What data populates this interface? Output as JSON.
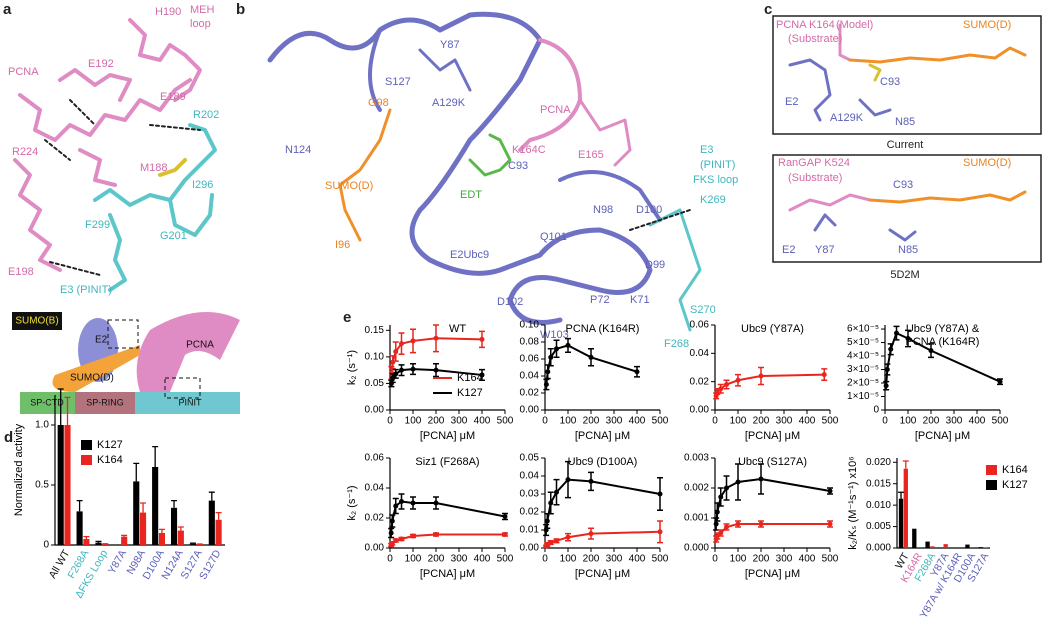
{
  "panels": {
    "a": {
      "letter": "a",
      "labels": [
        "H190",
        "MEH",
        "loop",
        "PCNA",
        "E192",
        "E189",
        "R202",
        "R224",
        "M188",
        "I296",
        "F299",
        "G201",
        "E198",
        "E3 (PINIT)"
      ],
      "schematic": [
        "SUMO(B)",
        "E2",
        "SUMO(D)",
        "PCNA",
        "SP-CTD",
        "SP-RING",
        "PINIT"
      ]
    },
    "b": {
      "letter": "b",
      "labels": [
        "Y87",
        "S127",
        "G98",
        "A129K",
        "PCNA",
        "E165",
        "N124",
        "SUMO(D)",
        "K164C",
        "C93",
        "E3",
        "(PINIT)",
        "FKS loop",
        "K269",
        "EDT",
        "I96",
        "N98",
        "D100",
        "Q101",
        "E2Ubc9",
        "D99",
        "P72",
        "K71",
        "S270",
        "D102",
        "W103",
        "F268"
      ]
    },
    "c": {
      "letter": "c",
      "boxes": [
        {
          "labels": [
            "PCNA K164",
            "(Model)",
            "(Substrate)",
            "SUMO(D)",
            "C93",
            "E2",
            "A129K",
            "N85"
          ],
          "caption": "Current"
        },
        {
          "labels": [
            "RanGAP K524",
            "(Substrate)",
            "SUMO(D)",
            "C93",
            "E2",
            "Y87",
            "N85"
          ],
          "caption": "5D2M"
        }
      ]
    }
  },
  "chart_data": [
    {
      "type": "bar",
      "panel_letter": "d",
      "ylabel": "Normalized activity",
      "categories": [
        "All WT",
        "F268A",
        "ΔFKS Loop",
        "Y87A",
        "N98A",
        "D100A",
        "N124A",
        "S127A",
        "S127D"
      ],
      "category_colors": [
        "#111111",
        "#3fb7bd",
        "#3fb7bd",
        "#5c5fb8",
        "#5c5fb8",
        "#5c5fb8",
        "#5c5fb8",
        "#5c5fb8",
        "#5c5fb8"
      ],
      "ylim": [
        0,
        1.25
      ],
      "yticks": [
        0,
        0.5,
        {
          "value": 1,
          "label": "1.0"
        }
      ],
      "legend": "upper right",
      "series": [
        {
          "name": "K127",
          "color": "#000000",
          "values": [
            1.0,
            0.28,
            0.02,
            null,
            0.53,
            0.65,
            0.31,
            0.01,
            0.37
          ],
          "errors": [
            0.3,
            0.09,
            0.01,
            null,
            0.15,
            0.17,
            0.06,
            0.005,
            0.07
          ]
        },
        {
          "name": "K164",
          "color": "#e8261f",
          "values": [
            1.0,
            0.05,
            0.005,
            0.07,
            0.27,
            0.1,
            0.12,
            0.005,
            0.21
          ],
          "errors": [
            0.23,
            0.02,
            0.005,
            0.01,
            0.08,
            0.03,
            0.03,
            0.003,
            0.06
          ]
        }
      ]
    },
    {
      "type": "line",
      "panel_letter": "e",
      "title": "WT",
      "ylabel": "k₂ (s⁻¹)",
      "xlabel": "[PCNA] μM",
      "x": [
        6,
        12,
        25,
        50,
        100,
        200,
        400
      ],
      "xlim": [
        0,
        500
      ],
      "xticks": [
        0,
        100,
        200,
        300,
        400,
        500
      ],
      "ylim": [
        0,
        0.16
      ],
      "yticks": [
        {
          "value": 0,
          "label": "0.00"
        },
        {
          "value": 0.05,
          "label": "0.05"
        },
        {
          "value": 0.1,
          "label": "0.10"
        },
        {
          "value": 0.15,
          "label": "0.15"
        }
      ],
      "legend": "center right",
      "series": [
        {
          "name": "K164",
          "color": "#e8261f",
          "values": [
            0.07,
            0.09,
            0.11,
            0.125,
            0.13,
            0.135,
            0.133
          ],
          "errors": [
            0.012,
            0.012,
            0.018,
            0.02,
            0.022,
            0.025,
            0.015
          ]
        },
        {
          "name": "K127",
          "color": "#000000",
          "values": [
            0.05,
            0.06,
            0.068,
            0.075,
            0.077,
            0.075,
            0.066
          ],
          "errors": [
            0.006,
            0.008,
            0.008,
            0.01,
            0.01,
            0.012,
            0.01
          ]
        }
      ]
    },
    {
      "type": "line",
      "title": "PCNA (K164R)",
      "xlabel": "[PCNA] μM",
      "x": [
        6,
        12,
        25,
        50,
        100,
        200,
        400
      ],
      "xlim": [
        0,
        500
      ],
      "xticks": [
        0,
        100,
        200,
        300,
        400,
        500
      ],
      "ylim": [
        0,
        0.1
      ],
      "yticks": [
        {
          "value": 0,
          "label": "0.00"
        },
        {
          "value": 0.02,
          "label": "0.02"
        },
        {
          "value": 0.04,
          "label": "0.04"
        },
        {
          "value": 0.06,
          "label": "0.06"
        },
        {
          "value": 0.08,
          "label": "0.08"
        },
        {
          "value": 0.1,
          "label": "0.10"
        }
      ],
      "series": [
        {
          "color": "#000000",
          "values": [
            0.03,
            0.045,
            0.062,
            0.072,
            0.076,
            0.062,
            0.045
          ],
          "errors": [
            0.006,
            0.008,
            0.01,
            0.01,
            0.008,
            0.01,
            0.006
          ]
        }
      ]
    },
    {
      "type": "line",
      "title": "Ubc9 (Y87A)",
      "xlabel": "[PCNA] μM",
      "x": [
        5,
        10,
        25,
        50,
        100,
        200,
        475
      ],
      "xlim": [
        0,
        500
      ],
      "xticks": [
        0,
        100,
        200,
        300,
        400,
        500
      ],
      "ylim": [
        0,
        0.06
      ],
      "yticks": [
        {
          "value": 0,
          "label": "0.00"
        },
        {
          "value": 0.02,
          "label": "0.02"
        },
        {
          "value": 0.04,
          "label": "0.04"
        },
        {
          "value": 0.06,
          "label": "0.06"
        }
      ],
      "series": [
        {
          "color": "#e8261f",
          "values": [
            0.01,
            0.013,
            0.015,
            0.018,
            0.021,
            0.024,
            0.025
          ],
          "errors": [
            0.002,
            0.002,
            0.003,
            0.003,
            0.004,
            0.006,
            0.004
          ]
        }
      ]
    },
    {
      "type": "line",
      "title": [
        "Ubc9 (Y87A) &",
        "PCNA (K164R)"
      ],
      "xlabel": "[PCNA] μM",
      "x": [
        5,
        10,
        25,
        50,
        100,
        200,
        500
      ],
      "xlim": [
        0,
        500
      ],
      "xticks": [
        0,
        100,
        200,
        300,
        400,
        500
      ],
      "ylim": [
        0,
        6.3e-05
      ],
      "yticks": [
        0,
        {
          "value": 1e-05,
          "label": "1×10⁻⁵"
        },
        {
          "value": 2e-05,
          "label": "2×10⁻⁵"
        },
        {
          "value": 3e-05,
          "label": "3×10⁻⁵"
        },
        {
          "value": 4e-05,
          "label": "4×10⁻⁵"
        },
        {
          "value": 5e-05,
          "label": "5×10⁻⁵"
        },
        {
          "value": 6e-05,
          "label": "6×10⁻⁵"
        }
      ],
      "series": [
        {
          "color": "#000000",
          "values": [
            1.8e-05,
            3e-05,
            4.5e-05,
            5.7e-05,
            5.3e-05,
            4.4e-05,
            2.1e-05
          ],
          "errors": [
            3e-06,
            4e-06,
            4e-06,
            5e-06,
            6e-06,
            5e-06,
            2e-06
          ]
        }
      ]
    },
    {
      "type": "line",
      "title": "Siz1 (F268A)",
      "ylabel": "k₂ (s⁻¹)",
      "xlabel": "[PCNA] μM",
      "x": [
        5,
        10,
        25,
        50,
        100,
        200,
        500
      ],
      "xlim": [
        0,
        500
      ],
      "xticks": [
        0,
        100,
        200,
        300,
        400,
        500
      ],
      "ylim": [
        0,
        0.06
      ],
      "yticks": [
        {
          "value": 0,
          "label": "0.00"
        },
        {
          "value": 0.02,
          "label": "0.02"
        },
        {
          "value": 0.04,
          "label": "0.04"
        },
        {
          "value": 0.06,
          "label": "0.06"
        }
      ],
      "series": [
        {
          "color": "#000000",
          "values": [
            0.01,
            0.018,
            0.028,
            0.031,
            0.03,
            0.03,
            0.021
          ],
          "errors": [
            0.003,
            0.004,
            0.005,
            0.005,
            0.004,
            0.004,
            0.002
          ]
        },
        {
          "color": "#e8261f",
          "values": [
            0.002,
            0.003,
            0.005,
            0.006,
            0.008,
            0.009,
            0.009
          ],
          "errors": [
            0.001,
            0.001,
            0.001,
            0.001,
            0.001,
            0.001,
            0.001
          ]
        }
      ]
    },
    {
      "type": "line",
      "title": "Ubc9 (D100A)",
      "xlabel": "[PCNA] μM",
      "x": [
        5,
        10,
        25,
        50,
        100,
        200,
        500
      ],
      "xlim": [
        0,
        500
      ],
      "xticks": [
        0,
        100,
        200,
        300,
        400,
        500
      ],
      "ylim": [
        0,
        0.05
      ],
      "yticks": [
        {
          "value": 0,
          "label": "0.00"
        },
        {
          "value": 0.01,
          "label": "0.01"
        },
        {
          "value": 0.02,
          "label": "0.02"
        },
        {
          "value": 0.03,
          "label": "0.03"
        },
        {
          "value": 0.04,
          "label": "0.04"
        },
        {
          "value": 0.05,
          "label": "0.05"
        }
      ],
      "series": [
        {
          "color": "#000000",
          "values": [
            0.01,
            0.015,
            0.025,
            0.031,
            0.038,
            0.037,
            0.03
          ],
          "errors": [
            0.003,
            0.004,
            0.006,
            0.007,
            0.01,
            0.005,
            0.009
          ]
        },
        {
          "color": "#e8261f",
          "values": [
            0.001,
            0.002,
            0.003,
            0.004,
            0.006,
            0.008,
            0.009
          ],
          "errors": [
            0.0005,
            0.001,
            0.001,
            0.001,
            0.002,
            0.003,
            0.006
          ]
        }
      ]
    },
    {
      "type": "line",
      "title": "Ubc9 (S127A)",
      "xlabel": "[PCNA] μM",
      "x": [
        5,
        10,
        25,
        50,
        100,
        200,
        500
      ],
      "xlim": [
        0,
        500
      ],
      "xticks": [
        0,
        100,
        200,
        300,
        400,
        500
      ],
      "ylim": [
        0,
        0.003
      ],
      "yticks": [
        {
          "value": 0,
          "label": "0.000"
        },
        {
          "value": 0.001,
          "label": "0.001"
        },
        {
          "value": 0.002,
          "label": "0.002"
        },
        {
          "value": 0.003,
          "label": "0.003"
        }
      ],
      "series": [
        {
          "color": "#000000",
          "values": [
            0.0008,
            0.0012,
            0.0017,
            0.002,
            0.0022,
            0.0023,
            0.0019
          ],
          "errors": [
            0.0002,
            0.0003,
            0.0003,
            0.0004,
            0.0006,
            0.0005,
            0.0001
          ]
        },
        {
          "color": "#e8261f",
          "values": [
            0.0003,
            0.0004,
            0.0005,
            0.0007,
            0.0008,
            0.0008,
            0.0008
          ],
          "errors": [
            0.0001,
            0.0001,
            0.0001,
            0.0001,
            0.0001,
            0.0001,
            0.0001
          ]
        }
      ]
    },
    {
      "type": "bar",
      "ylabel": "k₂/Kₛ (M⁻¹s⁻¹) x10⁶",
      "categories": [
        "WT",
        "K164R",
        "F268A",
        "Y87A",
        "Y87A w/ K164R",
        "D100A",
        "S127A"
      ],
      "category_colors": [
        "#111111",
        "#d46aa8",
        "#3fb7bd",
        "#5c5fb8",
        "#5c5fb8",
        "#5c5fb8",
        "#5c5fb8"
      ],
      "ylim": [
        0,
        0.021
      ],
      "yticks": [
        {
          "value": 0,
          "label": "0.000"
        },
        {
          "value": 0.005,
          "label": "0.005"
        },
        {
          "value": 0.01,
          "label": "0.010"
        },
        {
          "value": 0.015,
          "label": "0.015"
        },
        {
          "value": 0.02,
          "label": "0.020"
        }
      ],
      "legend": "outside right",
      "series": [
        {
          "name": "K164",
          "color": "#e8261f",
          "values": [
            0.0185,
            null,
            0.0004,
            0.0009,
            null,
            0.0002,
            0.0001
          ],
          "errors": [
            0.0018,
            null,
            null,
            null,
            null,
            null,
            null
          ]
        },
        {
          "name": "K127",
          "color": "#000000",
          "values": [
            0.0115,
            0.0045,
            0.0015,
            null,
            0.0001,
            0.0008,
            0.0002
          ],
          "errors": [
            0.0015,
            null,
            null,
            null,
            null,
            null,
            null
          ]
        }
      ]
    }
  ]
}
